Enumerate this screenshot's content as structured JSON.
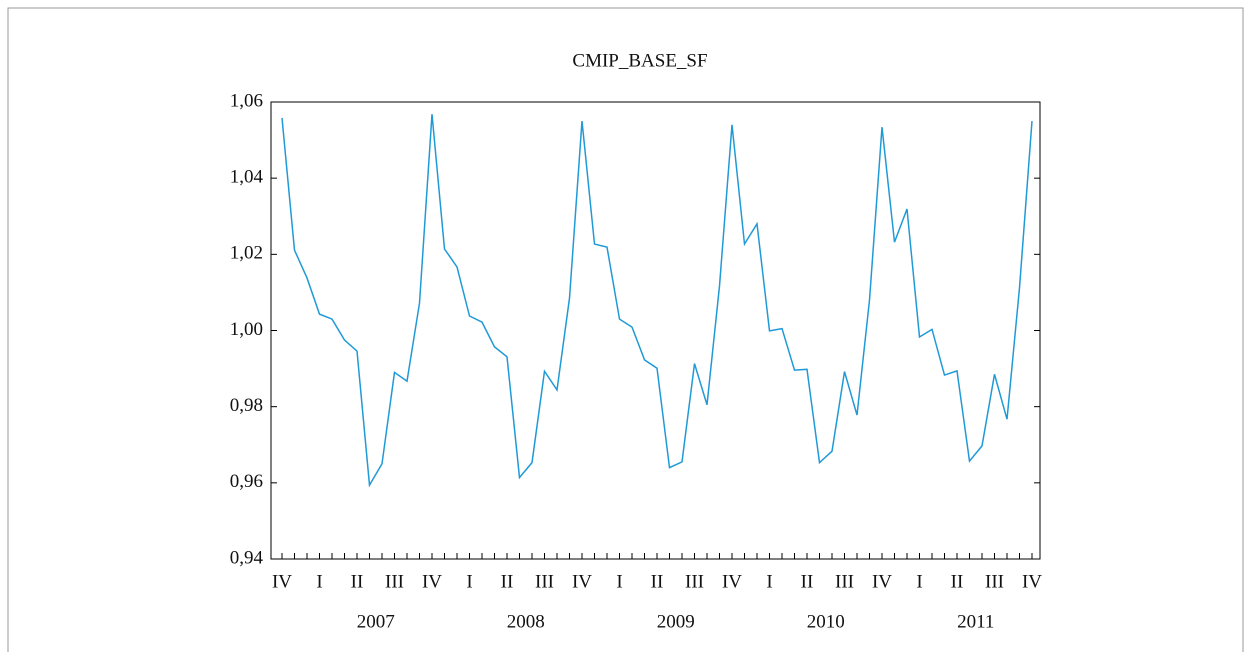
{
  "chart_data": {
    "type": "line",
    "title": "CMIP_BASE_SF",
    "categories": [
      "IV",
      null,
      null,
      "I",
      null,
      null,
      "II",
      null,
      null,
      "III",
      null,
      null,
      "IV",
      null,
      null,
      "I",
      null,
      null,
      "II",
      null,
      null,
      "III",
      null,
      null,
      "IV",
      null,
      null,
      "I",
      null,
      null,
      "II",
      null,
      null,
      "III",
      null,
      null,
      "IV",
      null,
      null,
      "I",
      null,
      null,
      "II",
      null,
      null,
      "III",
      null,
      null,
      "IV",
      null,
      null,
      "I",
      null,
      null,
      "II",
      null,
      null,
      "III",
      null,
      null,
      "IV"
    ],
    "year_labels": [
      "2007",
      "2008",
      "2009",
      "2010",
      "2011"
    ],
    "series": [
      {
        "name": "CMIP_BASE_SF",
        "color": "#1f9ad6",
        "values": [
          1.0558,
          1.0211,
          1.0138,
          1.0043,
          1.003,
          0.9975,
          0.9946,
          0.9594,
          0.965,
          0.989,
          0.9867,
          1.0072,
          1.0568,
          1.0214,
          1.0167,
          1.0038,
          1.0022,
          0.9957,
          0.9931,
          0.9614,
          0.9653,
          0.9893,
          0.9844,
          1.0085,
          1.055,
          1.0227,
          1.0219,
          1.003,
          1.0009,
          0.9923,
          0.9901,
          0.964,
          0.9655,
          0.9913,
          0.9805,
          1.0117,
          1.054,
          1.0227,
          1.028,
          0.9999,
          1.0005,
          0.9896,
          0.9898,
          0.9653,
          0.9683,
          0.9892,
          0.9778,
          1.008,
          1.0534,
          1.0232,
          1.0319,
          0.9983,
          1.0003,
          0.9883,
          0.9894,
          0.9657,
          0.9697,
          0.9885,
          0.9767,
          1.0112,
          1.055
        ]
      }
    ],
    "ylim": [
      0.94,
      1.06
    ],
    "yticks": [
      {
        "value": 0.94,
        "label": "0,94"
      },
      {
        "value": 0.96,
        "label": "0,96"
      },
      {
        "value": 0.98,
        "label": "0,98"
      },
      {
        "value": 1.0,
        "label": "1,00"
      },
      {
        "value": 1.02,
        "label": "1,02"
      },
      {
        "value": 1.04,
        "label": "1,04"
      },
      {
        "value": 1.06,
        "label": "1,06"
      }
    ],
    "grid": false
  }
}
